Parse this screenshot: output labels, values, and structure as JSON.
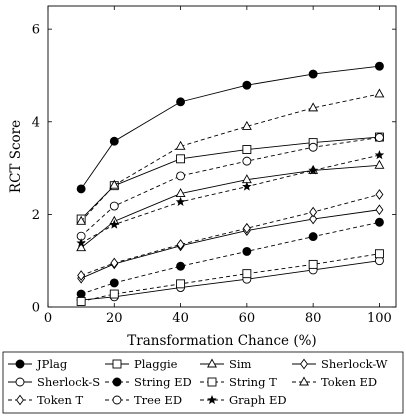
{
  "chart_data": {
    "type": "line",
    "xlabel": "Transformation Chance (%)",
    "ylabel": "RCT Score",
    "xlim": [
      0,
      105
    ],
    "ylim": [
      0,
      6.5
    ],
    "x_ticks": [
      0,
      20,
      40,
      60,
      80,
      100
    ],
    "y_ticks": [
      0,
      2,
      4,
      6
    ],
    "grid": false,
    "legend_position": "bottom",
    "x": [
      10,
      20,
      40,
      60,
      80,
      100
    ],
    "series": [
      {
        "name": "JPlag",
        "marker": "filled-circle",
        "dashed": false,
        "values": [
          2.55,
          3.58,
          4.43,
          4.79,
          5.03,
          5.2
        ]
      },
      {
        "name": "Plaggie",
        "marker": "open-square",
        "dashed": false,
        "values": [
          1.9,
          2.62,
          3.2,
          3.4,
          3.55,
          3.67
        ]
      },
      {
        "name": "Sim",
        "marker": "open-triangle",
        "dashed": false,
        "values": [
          1.28,
          1.85,
          2.45,
          2.75,
          2.95,
          3.06
        ]
      },
      {
        "name": "Sherlock-W",
        "marker": "open-diamond",
        "dashed": false,
        "values": [
          0.62,
          0.93,
          1.32,
          1.65,
          1.9,
          2.1
        ]
      },
      {
        "name": "Sherlock-S",
        "marker": "open-circle",
        "dashed": false,
        "values": [
          0.15,
          0.22,
          0.42,
          0.6,
          0.8,
          1.0
        ]
      },
      {
        "name": "String ED",
        "marker": "filled-circle",
        "dashed": true,
        "values": [
          0.28,
          0.52,
          0.88,
          1.2,
          1.52,
          1.83
        ]
      },
      {
        "name": "String T",
        "marker": "open-square",
        "dashed": true,
        "values": [
          0.12,
          0.28,
          0.5,
          0.72,
          0.92,
          1.15
        ]
      },
      {
        "name": "Token ED",
        "marker": "open-triangle",
        "dashed": true,
        "values": [
          1.85,
          2.63,
          3.47,
          3.9,
          4.3,
          4.6
        ]
      },
      {
        "name": "Token T",
        "marker": "open-diamond",
        "dashed": true,
        "values": [
          0.68,
          0.95,
          1.35,
          1.7,
          2.05,
          2.43
        ]
      },
      {
        "name": "Tree ED",
        "marker": "open-circle",
        "dashed": true,
        "values": [
          1.53,
          2.18,
          2.83,
          3.15,
          3.45,
          3.66
        ]
      },
      {
        "name": "Graph ED",
        "marker": "star",
        "dashed": true,
        "values": [
          1.38,
          1.78,
          2.27,
          2.6,
          2.95,
          3.28
        ]
      }
    ]
  }
}
